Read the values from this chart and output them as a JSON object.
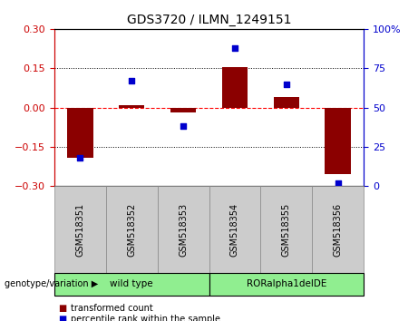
{
  "title": "GDS3720 / ILMN_1249151",
  "samples": [
    "GSM518351",
    "GSM518352",
    "GSM518353",
    "GSM518354",
    "GSM518355",
    "GSM518356"
  ],
  "transformed_counts": [
    -0.19,
    0.01,
    -0.02,
    0.155,
    0.04,
    -0.255
  ],
  "percentile_ranks": [
    18,
    67,
    38,
    88,
    65,
    2
  ],
  "group_configs": [
    {
      "label": "wild type",
      "start": 0,
      "end": 3,
      "color": "#90EE90"
    },
    {
      "label": "RORalpha1delDE",
      "start": 3,
      "end": 6,
      "color": "#90EE90"
    }
  ],
  "ylim_left": [
    -0.3,
    0.3
  ],
  "ylim_right": [
    0,
    100
  ],
  "yticks_left": [
    -0.3,
    -0.15,
    0,
    0.15,
    0.3
  ],
  "yticks_right": [
    0,
    25,
    50,
    75,
    100
  ],
  "bar_color": "#8B0000",
  "dot_color": "#0000CD",
  "background_color": "#ffffff",
  "left_tick_color": "#CC0000",
  "right_tick_color": "#0000CC",
  "legend_items": [
    "transformed count",
    "percentile rank within the sample"
  ],
  "genotype_label": "genotype/variation"
}
